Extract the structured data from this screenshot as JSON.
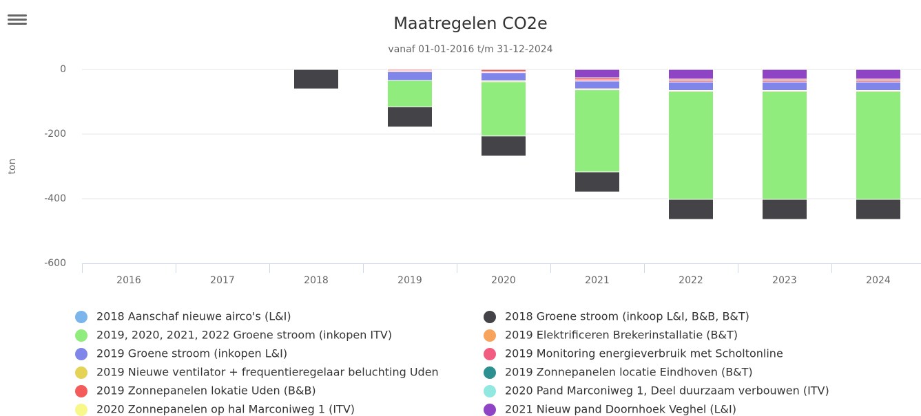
{
  "chart_data": {
    "type": "bar",
    "stacked": true,
    "title": "Maatregelen CO2e",
    "subtitle": "vanaf 01-01-2016 t/m 31-12-2024",
    "y_label": "ton",
    "categories": [
      "2016",
      "2017",
      "2018",
      "2019",
      "2020",
      "2021",
      "2022",
      "2023",
      "2024"
    ],
    "ylim": [
      -600,
      0
    ],
    "yticks": [
      0,
      -200,
      -400,
      -600
    ],
    "grid": true,
    "series": [
      {
        "name": "2018 Aanschaf nieuwe airco's (L&I)",
        "color": "#7cb5ec",
        "values": [
          null,
          null,
          null,
          null,
          null,
          null,
          null,
          null,
          null
        ]
      },
      {
        "name": "2018 Groene stroom (inkoop L&I, B&B, B&T)",
        "color": "#434348",
        "values": [
          null,
          null,
          -60,
          -62,
          -62,
          -62,
          -62,
          -62,
          -62
        ]
      },
      {
        "name": "2019, 2020, 2021, 2022 Groene stroom (inkopen ITV)",
        "color": "#90ed7d",
        "values": [
          null,
          null,
          null,
          -82,
          -168,
          -254,
          -334,
          -334,
          -334
        ]
      },
      {
        "name": "2019 Elektrificeren Brekerinstallatie (B&T)",
        "color": "#f7a35c",
        "values": [
          null,
          null,
          null,
          null,
          -3,
          -3,
          -3,
          -3,
          -3
        ]
      },
      {
        "name": "2019 Groene stroom (inkopen L&I)",
        "color": "#8085e9",
        "values": [
          null,
          null,
          null,
          -27,
          -25,
          -24,
          -26,
          -26,
          -26
        ]
      },
      {
        "name": "2019 Monitoring energieverbruik met Scholtonline",
        "color": "#f15c80",
        "values": [
          null,
          null,
          null,
          -3,
          -4,
          -4,
          -4,
          -4,
          -4
        ]
      },
      {
        "name": "2019 Nieuwe ventilator + frequentieregelaar beluchting Uden",
        "color": "#e4d354",
        "values": [
          null,
          null,
          null,
          null,
          null,
          null,
          null,
          null,
          null
        ]
      },
      {
        "name": "2019 Zonnepanelen locatie Eindhoven (B&T)",
        "color": "#2b908f",
        "values": [
          null,
          null,
          null,
          null,
          null,
          null,
          null,
          null,
          null
        ]
      },
      {
        "name": "2019 Zonnepanelen lokatie Uden (B&B)",
        "color": "#f45b5b",
        "values": [
          null,
          null,
          null,
          -4,
          -6,
          -6,
          -5,
          -5,
          -5
        ]
      },
      {
        "name": "2020 Pand Marconiweg 1, Deel duurzaam verbouwen (ITV)",
        "color": "#91e8e1",
        "values": [
          null,
          null,
          null,
          null,
          null,
          null,
          null,
          null,
          null
        ]
      },
      {
        "name": "2020 Zonnepanelen op hal Marconiweg 1 (ITV)",
        "color": "#f7f78a",
        "values": [
          null,
          null,
          null,
          null,
          null,
          null,
          null,
          null,
          null
        ]
      },
      {
        "name": "2021 Nieuw pand Doornhoek Veghel (L&I)",
        "color": "#8e44c4",
        "values": [
          null,
          null,
          null,
          null,
          null,
          -26,
          -30,
          -30,
          -30
        ]
      }
    ]
  }
}
